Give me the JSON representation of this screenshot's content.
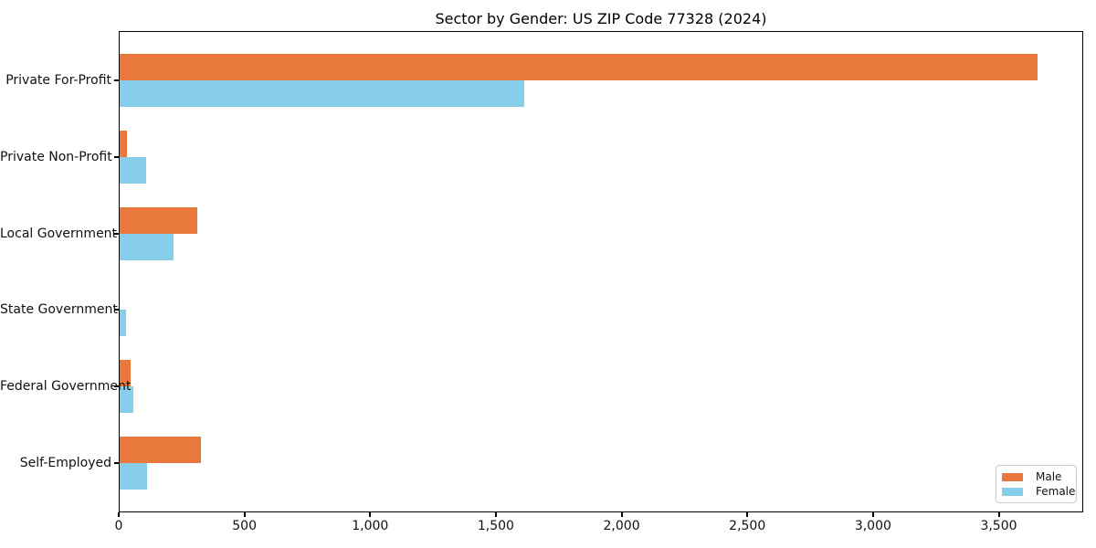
{
  "chart_data": {
    "type": "bar",
    "orientation": "horizontal",
    "title": "Sector by Gender: US ZIP Code 77328 (2024)",
    "xlabel": "",
    "ylabel": "",
    "categories": [
      "Private For-Profit",
      "Private Non-Profit",
      "Local Government",
      "State Government",
      "Federal Government",
      "Self-Employed"
    ],
    "series": [
      {
        "name": "Male",
        "color": "#e8783c",
        "values": [
          3650,
          30,
          310,
          0,
          45,
          325
        ]
      },
      {
        "name": "Female",
        "color": "#87ceeb",
        "values": [
          1610,
          105,
          215,
          25,
          55,
          110
        ]
      }
    ],
    "xlim": [
      0,
      3836
    ],
    "xticks": [
      0,
      500,
      1000,
      1500,
      2000,
      2500,
      3000,
      3500
    ],
    "xtick_labels": [
      "0",
      "500",
      "1,000",
      "1,500",
      "2,000",
      "2,500",
      "3,000",
      "3,500"
    ],
    "grid": false,
    "legend": {
      "position": "lower right",
      "entries": [
        "Male",
        "Female"
      ]
    }
  },
  "colors": {
    "male": "#e8783c",
    "female": "#87ceeb",
    "axis": "#000000",
    "legend_border": "#cccccc",
    "background": "#ffffff"
  }
}
